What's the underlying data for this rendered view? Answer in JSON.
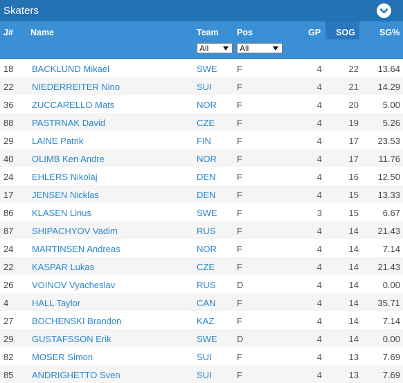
{
  "panel": {
    "title": "Skaters"
  },
  "columns": {
    "jersey": "J#",
    "name": "Name",
    "team": "Team",
    "pos": "Pos",
    "gp": "GP",
    "sog": "SOG",
    "sgp": "SG%"
  },
  "filters": {
    "team": {
      "selected": "All"
    },
    "pos": {
      "selected": "All"
    }
  },
  "colors": {
    "title_bar": "#2272b4",
    "header": "#3b8fd4",
    "sorted_column": "#2a77c0",
    "link": "#2a86c9"
  },
  "rows": [
    {
      "jersey": "18",
      "name": "BACKLUND Mikael",
      "team": "SWE",
      "pos": "F",
      "gp": "4",
      "sog": "22",
      "sgp": "13.64"
    },
    {
      "jersey": "22",
      "name": "NIEDERREITER Nino",
      "team": "SUI",
      "pos": "F",
      "gp": "4",
      "sog": "21",
      "sgp": "14.29"
    },
    {
      "jersey": "36",
      "name": "ZUCCARELLO Mats",
      "team": "NOR",
      "pos": "F",
      "gp": "4",
      "sog": "20",
      "sgp": "5.00"
    },
    {
      "jersey": "88",
      "name": "PASTRNAK David",
      "team": "CZE",
      "pos": "F",
      "gp": "4",
      "sog": "19",
      "sgp": "5.26"
    },
    {
      "jersey": "29",
      "name": "LAINE Patrik",
      "team": "FIN",
      "pos": "F",
      "gp": "4",
      "sog": "17",
      "sgp": "23.53"
    },
    {
      "jersey": "40",
      "name": "OLIMB Ken Andre",
      "team": "NOR",
      "pos": "F",
      "gp": "4",
      "sog": "17",
      "sgp": "11.76"
    },
    {
      "jersey": "24",
      "name": "EHLERS Nikolaj",
      "team": "DEN",
      "pos": "F",
      "gp": "4",
      "sog": "16",
      "sgp": "12.50"
    },
    {
      "jersey": "17",
      "name": "JENSEN Nicklas",
      "team": "DEN",
      "pos": "F",
      "gp": "4",
      "sog": "15",
      "sgp": "13.33"
    },
    {
      "jersey": "86",
      "name": "KLASEN Linus",
      "team": "SWE",
      "pos": "F",
      "gp": "3",
      "sog": "15",
      "sgp": "6.67"
    },
    {
      "jersey": "87",
      "name": "SHIPACHYOV Vadim",
      "team": "RUS",
      "pos": "F",
      "gp": "4",
      "sog": "14",
      "sgp": "21.43"
    },
    {
      "jersey": "24",
      "name": "MARTINSEN Andreas",
      "team": "NOR",
      "pos": "F",
      "gp": "4",
      "sog": "14",
      "sgp": "7.14"
    },
    {
      "jersey": "22",
      "name": "KASPAR Lukas",
      "team": "CZE",
      "pos": "F",
      "gp": "4",
      "sog": "14",
      "sgp": "21.43"
    },
    {
      "jersey": "26",
      "name": "VOINOV Vyacheslav",
      "team": "RUS",
      "pos": "D",
      "gp": "4",
      "sog": "14",
      "sgp": "0.00"
    },
    {
      "jersey": "4",
      "name": "HALL Taylor",
      "team": "CAN",
      "pos": "F",
      "gp": "4",
      "sog": "14",
      "sgp": "35.71"
    },
    {
      "jersey": "27",
      "name": "BOCHENSKI Brandon",
      "team": "KAZ",
      "pos": "F",
      "gp": "4",
      "sog": "14",
      "sgp": "7.14"
    },
    {
      "jersey": "29",
      "name": "GUSTAFSSON Erik",
      "team": "SWE",
      "pos": "D",
      "gp": "4",
      "sog": "14",
      "sgp": "0.00"
    },
    {
      "jersey": "82",
      "name": "MOSER Simon",
      "team": "SUI",
      "pos": "F",
      "gp": "4",
      "sog": "13",
      "sgp": "7.69"
    },
    {
      "jersey": "85",
      "name": "ANDRIGHETTO Sven",
      "team": "SUI",
      "pos": "F",
      "gp": "4",
      "sog": "13",
      "sgp": "7.69"
    }
  ]
}
